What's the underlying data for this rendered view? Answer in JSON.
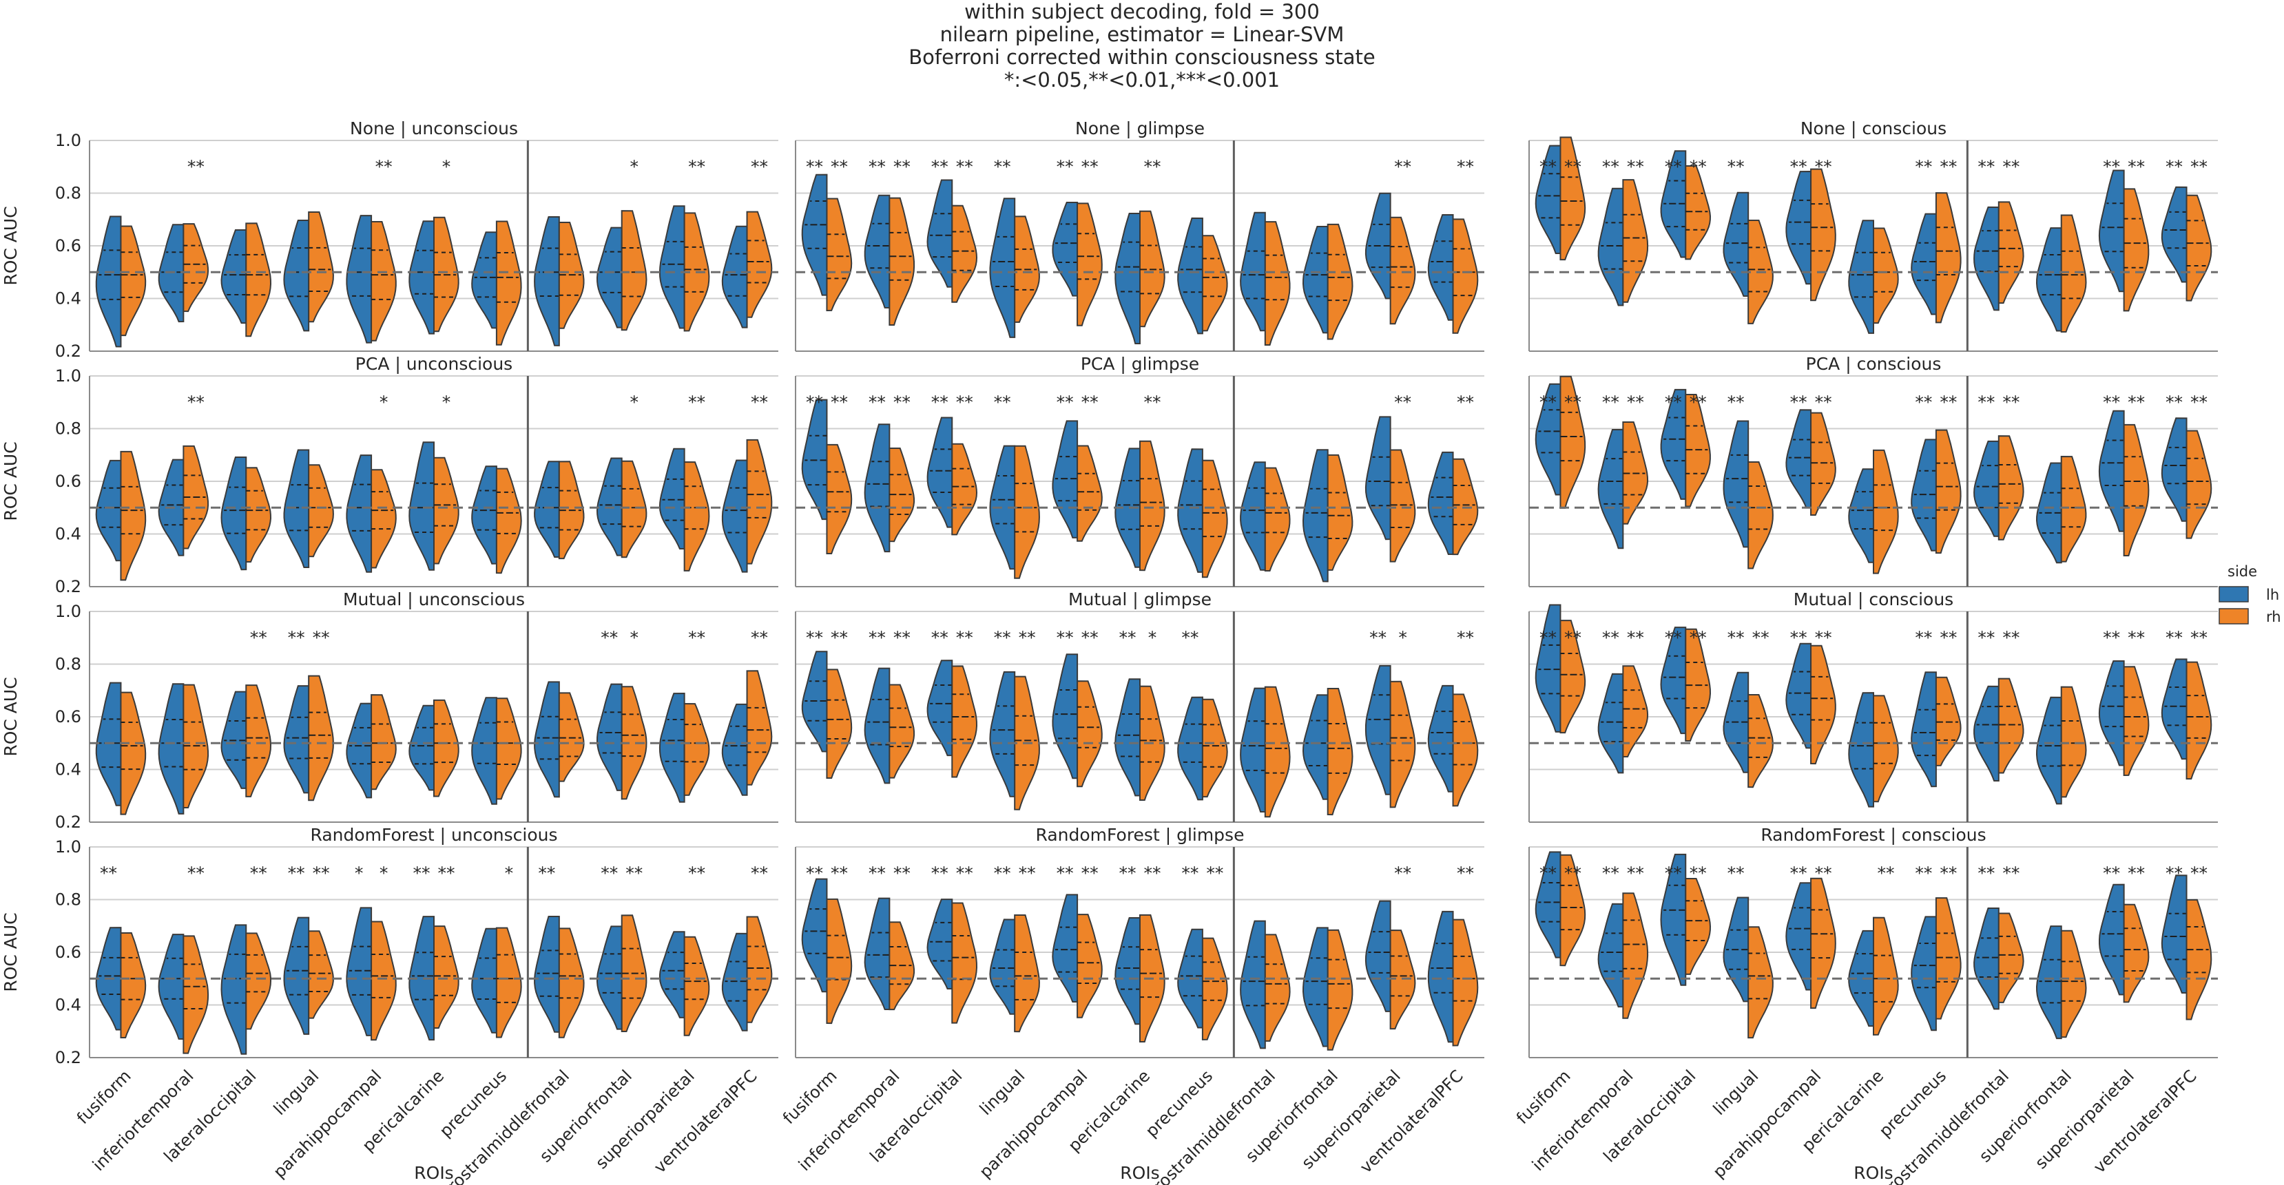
{
  "chart_data": {
    "type": "violin",
    "title_lines": [
      "within subject decoding, fold = 300",
      "nilearn pipeline, estimator = Linear-SVM",
      "Boferroni corrected within consciousness state",
      "*:<0.05,**<0.01,***<0.001"
    ],
    "ylabel": "ROC AUC",
    "xlabel": "ROIs",
    "ylim": [
      0.2,
      1.0
    ],
    "yticks": [
      "0.2",
      "0.4",
      "0.6",
      "0.8",
      "1.0"
    ],
    "chance_level": 0.5,
    "rois": [
      "fusiform",
      "inferiortemporal",
      "lateraloccipital",
      "lingual",
      "parahippocampal",
      "pericalcarine",
      "precuneus",
      "rostralmiddlefrontal",
      "superiorfrontal",
      "superiorparietal",
      "ventrolateralPFC"
    ],
    "divider_after_index": 6,
    "legend": {
      "title": "side",
      "entries": [
        {
          "label": "lh",
          "color": "#2f77b2"
        },
        {
          "label": "rh",
          "color": "#ee8428"
        }
      ]
    },
    "rows": [
      "None",
      "PCA",
      "Mutual",
      "RandomForest"
    ],
    "cols": [
      "unconscious",
      "glimpse",
      "conscious"
    ],
    "panels": [
      {
        "title": "None | unconscious",
        "lh": [
          0.49,
          0.5,
          0.49,
          0.5,
          0.5,
          0.5,
          0.48,
          0.5,
          0.5,
          0.53,
          0.49
        ],
        "rh": [
          0.49,
          0.53,
          0.49,
          0.51,
          0.49,
          0.49,
          0.48,
          0.49,
          0.5,
          0.51,
          0.54
        ],
        "sig_lh": [
          "",
          "",
          "",
          "",
          "",
          "",
          "",
          "",
          "",
          "",
          ""
        ],
        "sig_rh": [
          "",
          "**",
          "",
          "",
          "**",
          "*",
          "",
          "",
          "*",
          "**",
          "**"
        ]
      },
      {
        "title": "None | glimpse",
        "lh": [
          0.68,
          0.6,
          0.64,
          0.54,
          0.61,
          0.52,
          0.51,
          0.49,
          0.49,
          0.6,
          0.54
        ],
        "rh": [
          0.56,
          0.56,
          0.58,
          0.51,
          0.56,
          0.51,
          0.48,
          0.48,
          0.48,
          0.52,
          0.5
        ],
        "sig_lh": [
          "**",
          "**",
          "**",
          "**",
          "**",
          "",
          "",
          "",
          "",
          "",
          ""
        ],
        "sig_rh": [
          "**",
          "**",
          "**",
          "",
          "**",
          "**",
          "",
          "",
          "",
          "**",
          "**"
        ]
      },
      {
        "title": "None | conscious",
        "lh": [
          0.79,
          0.6,
          0.76,
          0.61,
          0.69,
          0.49,
          0.54,
          0.58,
          0.49,
          0.67,
          0.66
        ],
        "rh": [
          0.77,
          0.63,
          0.73,
          0.51,
          0.67,
          0.5,
          0.58,
          0.59,
          0.49,
          0.61,
          0.61
        ],
        "sig_lh": [
          "**",
          "**",
          "**",
          "**",
          "**",
          "",
          "**",
          "**",
          "",
          "**",
          "**"
        ],
        "sig_rh": [
          "**",
          "**",
          "**",
          "",
          "**",
          "",
          "**",
          "**",
          "",
          "**",
          "**"
        ]
      },
      {
        "title": "PCA | unconscious",
        "lh": [
          0.5,
          0.51,
          0.49,
          0.5,
          0.5,
          0.5,
          0.49,
          0.5,
          0.51,
          0.53,
          0.49
        ],
        "rh": [
          0.49,
          0.54,
          0.49,
          0.5,
          0.49,
          0.51,
          0.48,
          0.49,
          0.5,
          0.5,
          0.55
        ],
        "sig_lh": [
          "",
          "",
          "",
          "",
          "",
          "",
          "",
          "",
          "",
          "",
          ""
        ],
        "sig_rh": [
          "",
          "**",
          "",
          "",
          "*",
          "*",
          "",
          "",
          "*",
          "**",
          "**"
        ]
      },
      {
        "title": "PCA | glimpse",
        "lh": [
          0.68,
          0.59,
          0.64,
          0.53,
          0.61,
          0.51,
          0.51,
          0.49,
          0.48,
          0.6,
          0.54
        ],
        "rh": [
          0.56,
          0.55,
          0.58,
          0.5,
          0.56,
          0.52,
          0.48,
          0.48,
          0.47,
          0.51,
          0.51
        ],
        "sig_lh": [
          "**",
          "**",
          "**",
          "**",
          "**",
          "",
          "",
          "",
          "",
          "",
          ""
        ],
        "sig_rh": [
          "**",
          "**",
          "**",
          "",
          "**",
          "**",
          "",
          "",
          "",
          "**",
          "**"
        ]
      },
      {
        "title": "PCA | conscious",
        "lh": [
          0.79,
          0.6,
          0.76,
          0.61,
          0.69,
          0.49,
          0.55,
          0.58,
          0.48,
          0.67,
          0.66
        ],
        "rh": [
          0.77,
          0.63,
          0.72,
          0.5,
          0.67,
          0.5,
          0.58,
          0.59,
          0.5,
          0.6,
          0.6
        ],
        "sig_lh": [
          "**",
          "**",
          "**",
          "**",
          "**",
          "",
          "**",
          "**",
          "",
          "**",
          "**"
        ],
        "sig_rh": [
          "**",
          "**",
          "**",
          "",
          "**",
          "",
          "**",
          "**",
          "",
          "**",
          "**"
        ]
      },
      {
        "title": "Mutual | unconscious",
        "lh": [
          0.5,
          0.5,
          0.51,
          0.52,
          0.49,
          0.49,
          0.5,
          0.52,
          0.54,
          0.51,
          0.49
        ],
        "rh": [
          0.49,
          0.49,
          0.52,
          0.53,
          0.5,
          0.5,
          0.5,
          0.52,
          0.53,
          0.5,
          0.55
        ],
        "sig_lh": [
          "",
          "",
          "",
          "**",
          "",
          "",
          "",
          "",
          "**",
          "",
          ""
        ],
        "sig_rh": [
          "",
          "",
          "**",
          "**",
          "",
          "",
          "",
          "",
          "*",
          "**",
          "**"
        ]
      },
      {
        "title": "Mutual | glimpse",
        "lh": [
          0.66,
          0.58,
          0.65,
          0.55,
          0.61,
          0.53,
          0.5,
          0.49,
          0.5,
          0.59,
          0.54
        ],
        "rh": [
          0.59,
          0.56,
          0.6,
          0.51,
          0.56,
          0.51,
          0.49,
          0.48,
          0.48,
          0.52,
          0.5
        ],
        "sig_lh": [
          "**",
          "**",
          "**",
          "**",
          "**",
          "**",
          "**",
          "",
          "",
          "**",
          ""
        ],
        "sig_rh": [
          "**",
          "**",
          "**",
          "**",
          "**",
          "*",
          "",
          "",
          "",
          "*",
          "**"
        ]
      },
      {
        "title": "Mutual | conscious",
        "lh": [
          0.78,
          0.58,
          0.75,
          0.58,
          0.69,
          0.49,
          0.54,
          0.57,
          0.49,
          0.64,
          0.64
        ],
        "rh": [
          0.76,
          0.63,
          0.72,
          0.52,
          0.67,
          0.5,
          0.58,
          0.57,
          0.5,
          0.6,
          0.6
        ],
        "sig_lh": [
          "**",
          "**",
          "**",
          "**",
          "**",
          "",
          "**",
          "**",
          "",
          "**",
          "**"
        ],
        "sig_rh": [
          "**",
          "**",
          "**",
          "**",
          "**",
          "",
          "**",
          "**",
          "",
          "**",
          "**"
        ]
      },
      {
        "title": "RandomForest | unconscious",
        "lh": [
          0.51,
          0.5,
          0.5,
          0.53,
          0.53,
          0.51,
          0.5,
          0.52,
          0.52,
          0.53,
          0.49
        ],
        "rh": [
          0.5,
          0.47,
          0.52,
          0.52,
          0.51,
          0.51,
          0.5,
          0.51,
          0.52,
          0.49,
          0.54
        ],
        "sig_lh": [
          "**",
          "",
          "",
          "**",
          "*",
          "**",
          "",
          "**",
          "**",
          "",
          ""
        ],
        "sig_rh": [
          "",
          "**",
          "**",
          "**",
          "*",
          "**",
          "*",
          "",
          "**",
          "**",
          "**"
        ]
      },
      {
        "title": "RandomForest | glimpse",
        "lh": [
          0.68,
          0.59,
          0.64,
          0.54,
          0.61,
          0.54,
          0.51,
          0.49,
          0.49,
          0.6,
          0.54
        ],
        "rh": [
          0.58,
          0.55,
          0.58,
          0.51,
          0.56,
          0.52,
          0.49,
          0.48,
          0.48,
          0.51,
          0.5
        ],
        "sig_lh": [
          "**",
          "**",
          "**",
          "**",
          "**",
          "**",
          "**",
          "",
          "",
          "",
          ""
        ],
        "sig_rh": [
          "**",
          "**",
          "**",
          "**",
          "**",
          "**",
          "**",
          "",
          "",
          "**",
          "**"
        ]
      },
      {
        "title": "RandomForest | conscious",
        "lh": [
          0.79,
          0.6,
          0.76,
          0.61,
          0.69,
          0.52,
          0.55,
          0.58,
          0.49,
          0.67,
          0.66
        ],
        "rh": [
          0.77,
          0.63,
          0.72,
          0.51,
          0.67,
          0.5,
          0.58,
          0.59,
          0.49,
          0.61,
          0.61
        ],
        "sig_lh": [
          "**",
          "**",
          "**",
          "**",
          "**",
          "",
          "**",
          "**",
          "",
          "**",
          "**"
        ],
        "sig_rh": [
          "**",
          "**",
          "**",
          "",
          "**",
          "**",
          "**",
          "**",
          "",
          "**",
          "**"
        ]
      }
    ]
  }
}
